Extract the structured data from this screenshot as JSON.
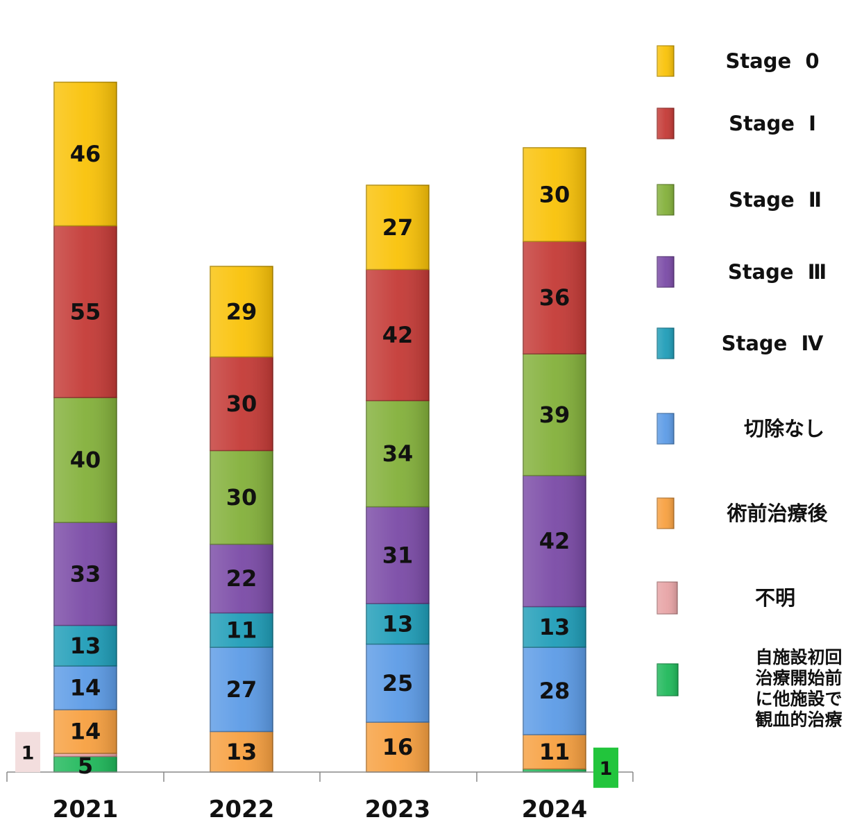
{
  "chart_data": {
    "type": "bar",
    "stacked": true,
    "categories": [
      "2021",
      "2022",
      "2023",
      "2024"
    ],
    "series": [
      {
        "name": "自施設初回治療開始前に他施設で観血的治療",
        "color": "#1fb85a",
        "values": [
          5,
          0,
          0,
          1
        ]
      },
      {
        "name": "不明",
        "color": "#e7a3a5",
        "values": [
          1,
          0,
          0,
          0
        ]
      },
      {
        "name": "術前治療後",
        "color": "#f7a040",
        "values": [
          14,
          13,
          16,
          11
        ]
      },
      {
        "name": "切除なし",
        "color": "#5c9be6",
        "values": [
          14,
          27,
          25,
          28
        ]
      },
      {
        "name": "Stage Ⅳ",
        "color": "#1f9db8",
        "values": [
          13,
          11,
          13,
          13
        ]
      },
      {
        "name": "Stage Ⅲ",
        "color": "#7a4aa6",
        "values": [
          33,
          22,
          31,
          42
        ]
      },
      {
        "name": "Stage Ⅱ",
        "color": "#83b03a",
        "values": [
          40,
          30,
          34,
          39
        ]
      },
      {
        "name": "Stage Ⅰ",
        "color": "#c43a36",
        "values": [
          55,
          30,
          42,
          36
        ]
      },
      {
        "name": "Stage 0",
        "color": "#f9c208",
        "values": [
          46,
          29,
          27,
          30
        ]
      }
    ],
    "data_labels": [
      [
        "5",
        "",
        "14",
        "14",
        "13",
        "33",
        "40",
        "55",
        "46"
      ],
      [
        "",
        "",
        "13",
        "27",
        "11",
        "22",
        "30",
        "30",
        "29"
      ],
      [
        "",
        "",
        "16",
        "25",
        "13",
        "31",
        "34",
        "42",
        "27"
      ],
      [
        "",
        "",
        "11",
        "28",
        "13",
        "42",
        "39",
        "36",
        "30"
      ]
    ],
    "callouts": [
      {
        "category": "2021",
        "series": "不明",
        "text": "1",
        "side": "left",
        "bg": "#f3dede"
      },
      {
        "category": "2024",
        "series": "自施設初回治療開始前に他施設で観血的治療",
        "text": "1",
        "side": "right",
        "bg": "#22c53c"
      }
    ],
    "legend": {
      "position": "right",
      "entries": [
        {
          "label": "Stage  0",
          "color": "#f9c208"
        },
        {
          "label": "Stage  Ⅰ",
          "color": "#c43a36"
        },
        {
          "label": "Stage  Ⅱ",
          "color": "#83b03a"
        },
        {
          "label": "Stage  Ⅲ",
          "color": "#7a4aa6"
        },
        {
          "label": "Stage  Ⅳ",
          "color": "#1f9db8"
        },
        {
          "label": "切除なし",
          "color": "#5c9be6"
        },
        {
          "label": "術前治療後",
          "color": "#f7a040"
        },
        {
          "label": "不明",
          "color": "#e7a3a5"
        },
        {
          "label": "自施設初回\n治療開始前\nに他施設で\n観血的治療",
          "color": "#1fb85a"
        }
      ]
    },
    "title": "",
    "xlabel": "",
    "ylabel": "",
    "ylim": [
      0,
      221
    ],
    "grid": false
  }
}
